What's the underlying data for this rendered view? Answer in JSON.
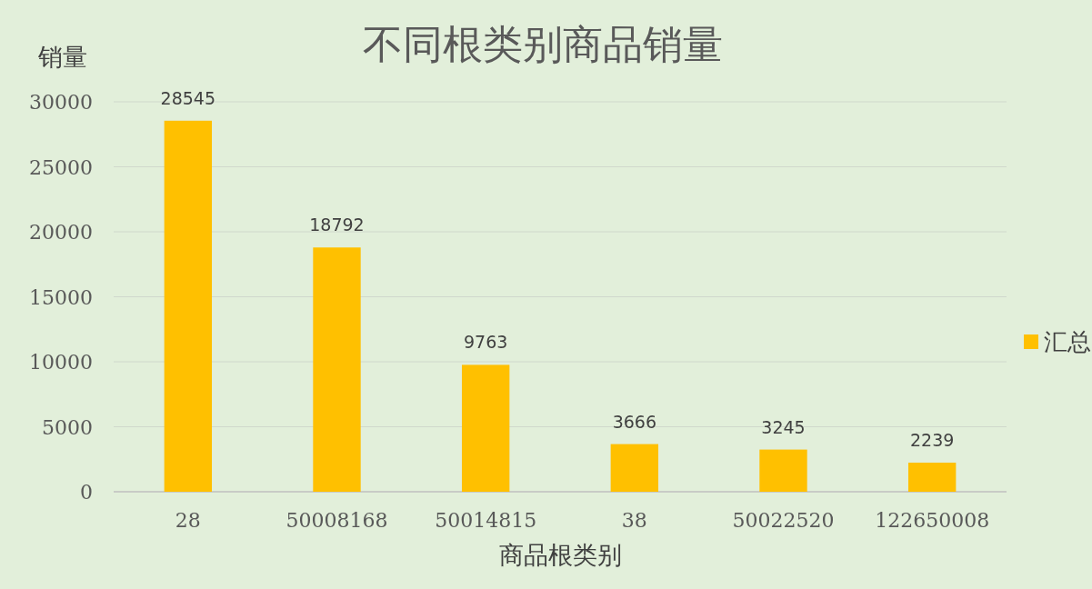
{
  "chart_data": {
    "type": "bar",
    "title": "不同根类别商品销量",
    "xlabel": "商品根类别",
    "ylabel": "销量",
    "categories": [
      "28",
      "50008168",
      "50014815",
      "38",
      "50022520",
      "122650008"
    ],
    "series": [
      {
        "name": "汇总",
        "color": "#ffc000",
        "values": [
          28545,
          18792,
          9763,
          3666,
          3245,
          2239
        ]
      }
    ],
    "ylim": [
      0,
      30000
    ],
    "yticks": [
      0,
      5000,
      10000,
      15000,
      20000,
      25000,
      30000
    ],
    "grid": "y",
    "legend": "right",
    "data_labels": true
  }
}
